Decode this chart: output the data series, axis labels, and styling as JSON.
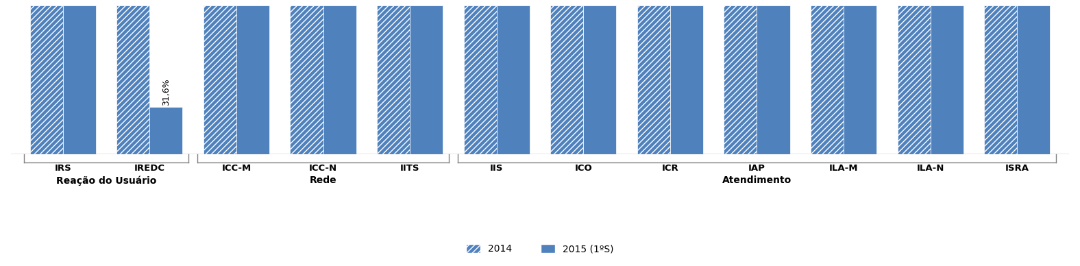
{
  "categories": [
    "IRS",
    "IREDC",
    "ICC-M",
    "ICC-N",
    "IITS",
    "IIS",
    "ICO",
    "ICR",
    "IAP",
    "ILA-M",
    "ILA-N",
    "ISRA"
  ],
  "values_2014": [
    1.0,
    1.0,
    1.0,
    1.0,
    1.0,
    1.0,
    1.0,
    1.0,
    1.0,
    1.0,
    1.0,
    1.0
  ],
  "values_2015": [
    1.0,
    0.316,
    1.0,
    1.0,
    1.0,
    1.0,
    1.0,
    1.0,
    1.0,
    1.0,
    1.0,
    1.0
  ],
  "bar_color": "#4f81bd",
  "bar_width": 0.38,
  "group_labels": [
    {
      "label": "Reação do Usuário",
      "cats": [
        "IRS",
        "IREDC"
      ]
    },
    {
      "label": "Rede",
      "cats": [
        "ICC-M",
        "ICC-N",
        "IITS"
      ]
    },
    {
      "label": "Atendimento",
      "cats": [
        "IIS",
        "ICO",
        "ICR",
        "IAP",
        "ILA-M",
        "ILA-N",
        "ISRA"
      ]
    }
  ],
  "annotation": {
    "cat_index": 1,
    "text": "31,6%"
  },
  "legend_2014": "2014",
  "legend_2015": "2015 (1ºS)",
  "ylim": [
    0,
    1.0
  ],
  "figsize": [
    15.76,
    3.88
  ],
  "dpi": 100
}
